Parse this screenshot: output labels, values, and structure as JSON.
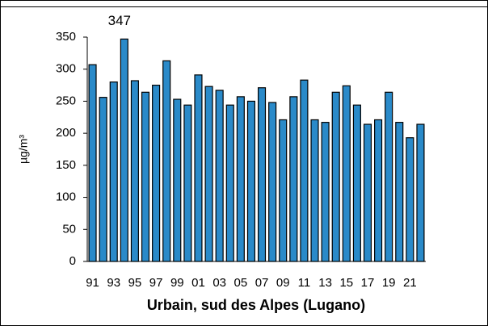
{
  "chart_data": {
    "type": "bar",
    "y_label": "µg/m³",
    "x_label": "Urbain, sud des Alpes (Lugano)",
    "categories": [
      "91",
      null,
      "93",
      null,
      "95",
      null,
      "97",
      null,
      "99",
      null,
      "01",
      null,
      "03",
      null,
      "05",
      null,
      "07",
      null,
      "09",
      null,
      "11",
      null,
      "13",
      null,
      "15",
      null,
      "17",
      null,
      "19",
      null,
      "21",
      null
    ],
    "values": [
      307,
      256,
      280,
      347,
      282,
      264,
      275,
      313,
      253,
      244,
      291,
      273,
      267,
      244,
      257,
      250,
      271,
      248,
      221,
      257,
      283,
      221,
      217,
      264,
      274,
      244,
      214,
      221,
      264,
      217,
      193,
      214
    ],
    "labeled_index": 3,
    "color": "#2a8ac9",
    "ylim": [
      0,
      350
    ],
    "yticks": [
      0,
      50,
      100,
      150,
      200,
      250,
      300,
      350
    ],
    "grid": false
  }
}
